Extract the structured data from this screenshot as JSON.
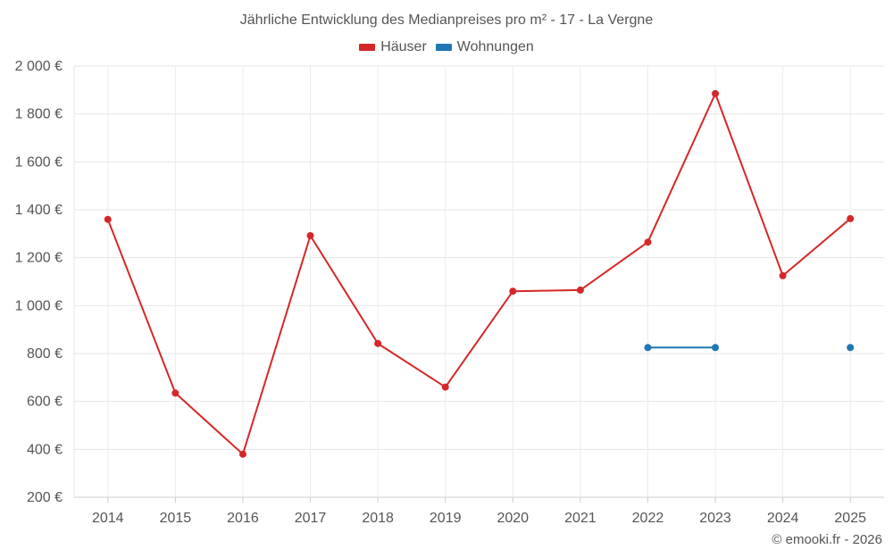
{
  "chart_data": {
    "type": "line",
    "title": "Jährliche Entwicklung des Medianpreises pro m² - 17 - La Vergne",
    "xlabel": "",
    "ylabel": "",
    "categories": [
      "2014",
      "2015",
      "2016",
      "2017",
      "2018",
      "2019",
      "2020",
      "2021",
      "2022",
      "2023",
      "2024",
      "2025"
    ],
    "ylim": [
      200,
      2000
    ],
    "yticks": [
      200,
      400,
      600,
      800,
      1000,
      1200,
      1400,
      1600,
      1800,
      2000
    ],
    "ytick_labels": [
      "200 €",
      "400 €",
      "600 €",
      "800 €",
      "1 000 €",
      "1 200 €",
      "1 400 €",
      "1 600 €",
      "1 800 €",
      "2 000 €"
    ],
    "grid": true,
    "legend_position": "top-center",
    "series": [
      {
        "name": "Häuser",
        "color": "#d62728",
        "values": [
          1360,
          635,
          380,
          1292,
          842,
          660,
          1060,
          1065,
          1265,
          1885,
          1125,
          1363
        ]
      },
      {
        "name": "Wohnungen",
        "color": "#1f77b4",
        "values": [
          null,
          null,
          null,
          null,
          null,
          null,
          null,
          null,
          825,
          825,
          null,
          825
        ]
      }
    ]
  },
  "credit": "© emooki.fr - 2026"
}
